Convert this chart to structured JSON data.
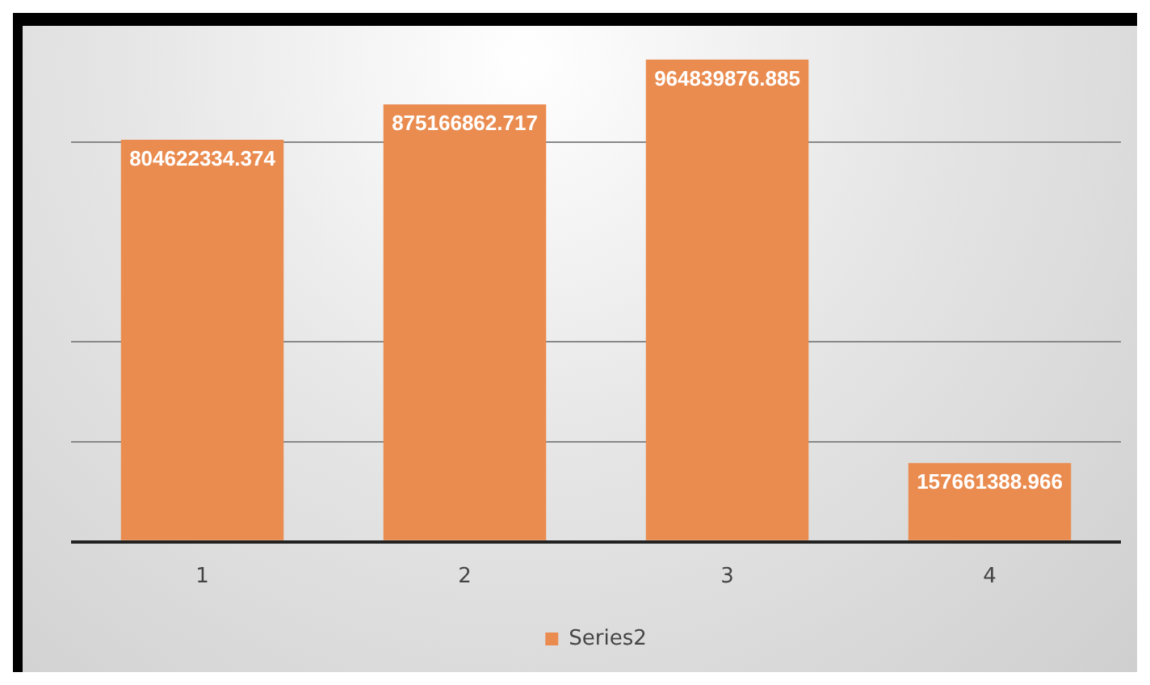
{
  "chart_data": {
    "type": "bar",
    "categories": [
      "1",
      "2",
      "3",
      "4"
    ],
    "series": [
      {
        "name": "Series2",
        "color": "#ea8c50",
        "values": [
          804622334.374,
          875166862.717,
          964839876.885,
          157661388.966
        ]
      }
    ],
    "yticks": [
      {
        "value": 0,
        "label": null
      },
      {
        "value": 200000000,
        "label": null
      },
      {
        "value": 400000000,
        "label": null
      },
      {
        "value": 800000000,
        "label": null
      }
    ],
    "tick_labels": "x",
    "grid": "y",
    "legend": "bottom",
    "data_labels": true
  }
}
